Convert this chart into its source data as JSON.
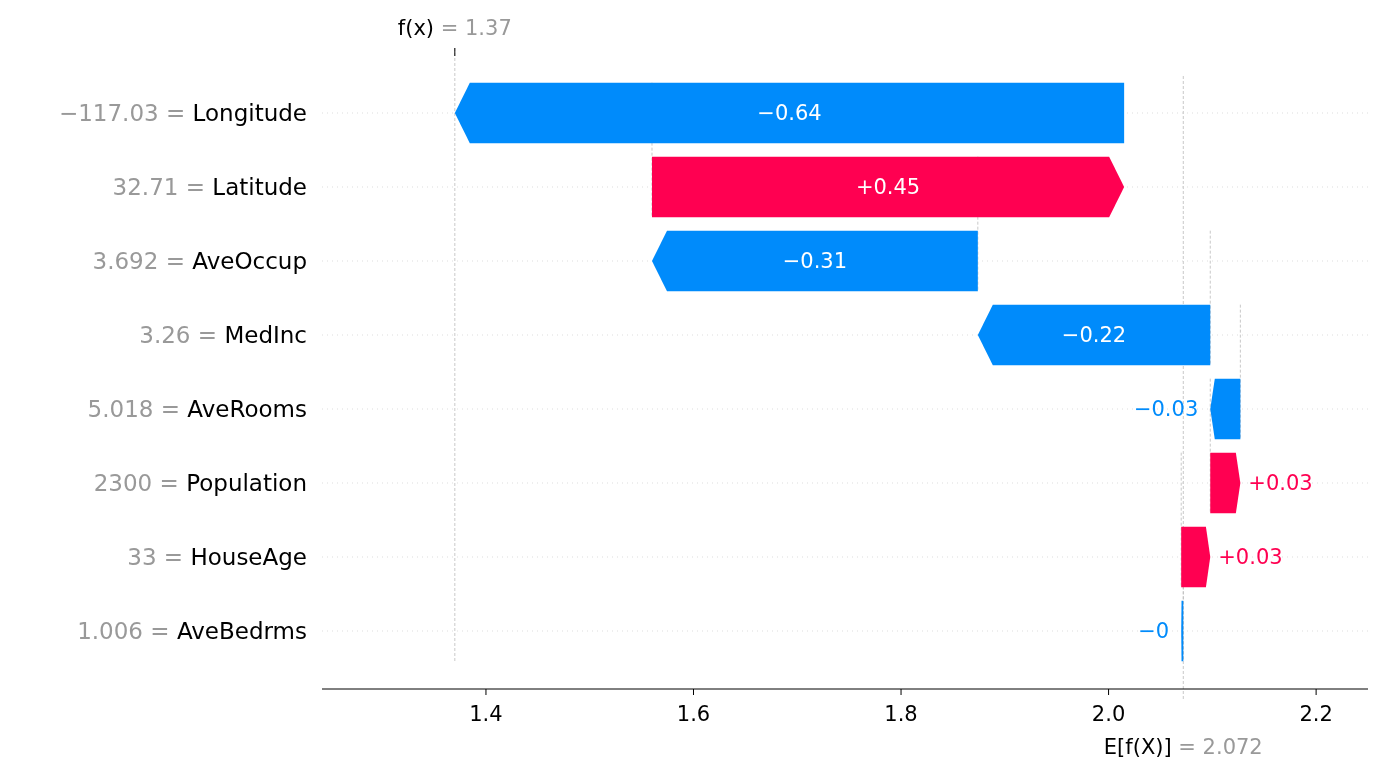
{
  "chart_data": {
    "type": "bar",
    "orientation": "horizontal",
    "categories": [
      "−117.03 = Longitude",
      "32.71 = Latitude",
      "3.692 = AveOccup",
      "3.26 = MedInc",
      "5.018 = AveRooms",
      "2300 = Population",
      "33 = HouseAge",
      "1.006 = AveBedrms"
    ],
    "base": [
      2.015,
      1.56,
      1.874,
      2.098,
      2.127,
      2.098,
      2.07,
      2.072
    ],
    "values": [
      -0.645,
      0.455,
      -0.314,
      -0.224,
      -0.029,
      0.029,
      0.028,
      -0.002
    ],
    "value_labels": [
      "−0.64",
      "+0.45",
      "−0.31",
      "−0.22",
      "−0.03",
      "+0.03",
      "+0.03",
      "−0"
    ],
    "colors": [
      "#008bfb",
      "#ff0051",
      "#008bfb",
      "#008bfb",
      "#008bfb",
      "#ff0051",
      "#ff0051",
      "#008bfb"
    ],
    "xlim": [
      1.242,
      2.25
    ],
    "xticks": [
      1.4,
      1.6,
      1.8,
      {
        "value": 2,
        "label": "2.0"
      },
      2.2
    ],
    "ref_lines": [
      {
        "axis": "x",
        "value": 1.37,
        "label": "f(x) = 1.37"
      },
      {
        "axis": "x",
        "value": 2.072,
        "label": "E[f(X)] = 2.072"
      }
    ],
    "grid": "y"
  }
}
